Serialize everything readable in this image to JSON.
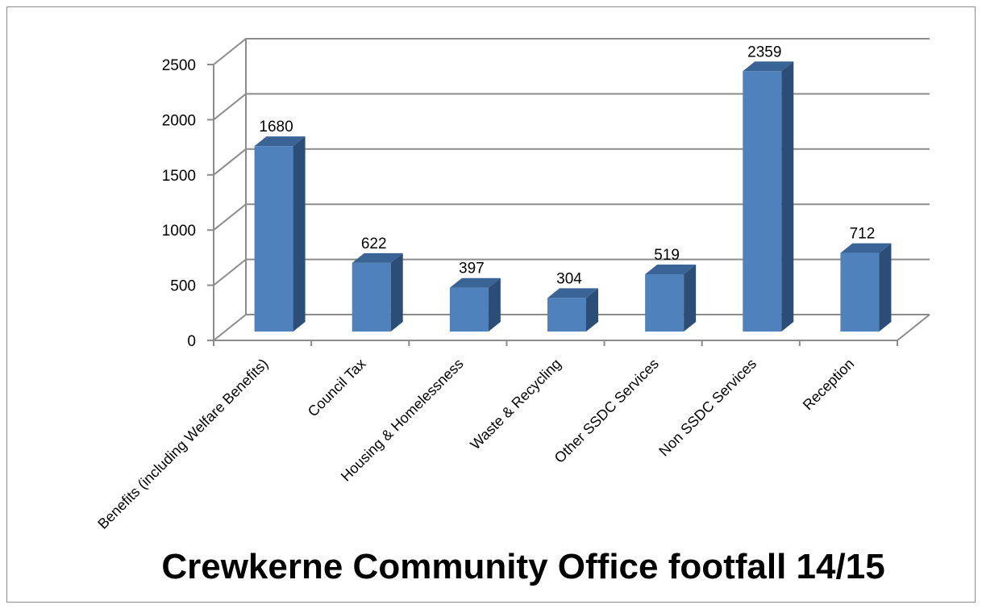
{
  "chart_data": {
    "type": "bar",
    "title": "Crewkerne Community Office footfall 14/15",
    "categories": [
      "Benefits (including Welfare Benefits)",
      "Council Tax",
      "Housing & Homelessness",
      "Waste & Recycling",
      "Other SSDC Services",
      "Non SSDC Services",
      "Reception"
    ],
    "values": [
      1680,
      622,
      397,
      304,
      519,
      2359,
      712
    ],
    "ylim": [
      0,
      2500
    ],
    "yticks": [
      0,
      500,
      1000,
      1500,
      2000,
      2500
    ],
    "grid": true,
    "bar_style": "3d",
    "colors": {
      "bar_front": "#4F81BD",
      "bar_side": "#2C4D75",
      "bar_top": "#3A6496"
    }
  }
}
